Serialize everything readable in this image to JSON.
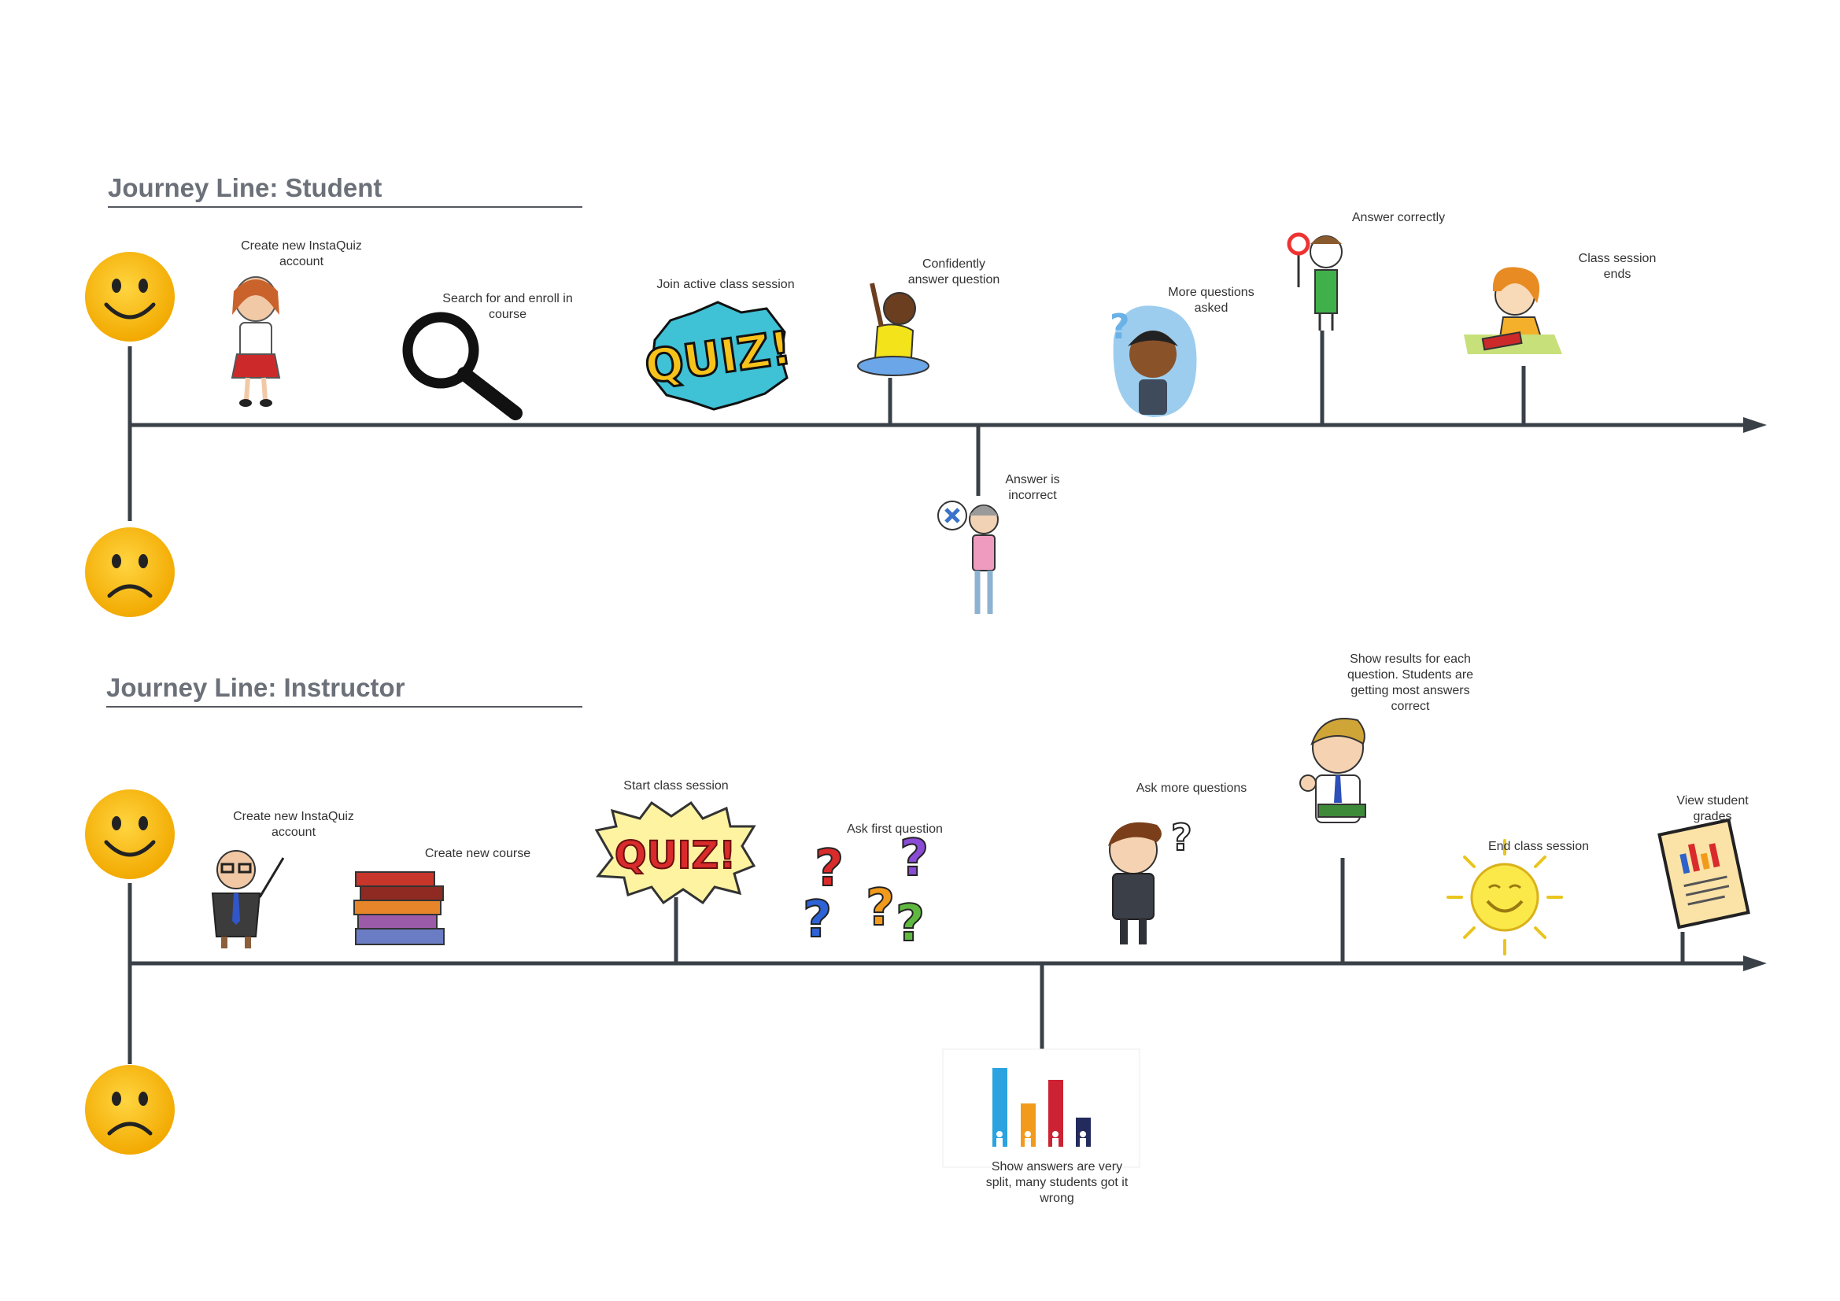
{
  "journeys": [
    {
      "title": "Journey Line: Student",
      "events": [
        {
          "name": "create-account",
          "lines": [
            "Create new InstaQuiz",
            "account"
          ],
          "icon": "student-girl-icon",
          "sentiment": "positive"
        },
        {
          "name": "search-enroll",
          "lines": [
            "Search for and enroll in",
            "course"
          ],
          "icon": "magnifying-glass-icon",
          "sentiment": "positive"
        },
        {
          "name": "join-session",
          "lines": [
            "Join active class session"
          ],
          "icon": "quiz-badge-icon",
          "sentiment": "positive"
        },
        {
          "name": "confident-answer",
          "lines": [
            "Confidently",
            "answer question"
          ],
          "icon": "raising-hand-student-icon",
          "sentiment": "positive"
        },
        {
          "name": "answer-incorrect",
          "lines": [
            "Answer is",
            "incorrect"
          ],
          "icon": "wrong-answer-person-icon",
          "sentiment": "negative"
        },
        {
          "name": "more-questions",
          "lines": [
            "More questions",
            "asked"
          ],
          "icon": "thinking-boy-icon",
          "sentiment": "positive"
        },
        {
          "name": "answer-correct",
          "lines": [
            "Answer correctly"
          ],
          "icon": "correct-answer-person-icon",
          "sentiment": "positive"
        },
        {
          "name": "session-ends",
          "lines": [
            "Class session",
            "ends"
          ],
          "icon": "girl-with-books-icon",
          "sentiment": "positive"
        }
      ]
    },
    {
      "title": "Journey Line: Instructor",
      "events": [
        {
          "name": "create-account",
          "lines": [
            "Create new InstaQuiz",
            "account"
          ],
          "icon": "professor-icon",
          "sentiment": "positive"
        },
        {
          "name": "create-course",
          "lines": [
            "Create new course"
          ],
          "icon": "book-stack-icon",
          "sentiment": "positive"
        },
        {
          "name": "start-session",
          "lines": [
            "Start class session"
          ],
          "icon": "quiz-burst-icon",
          "sentiment": "positive"
        },
        {
          "name": "first-question",
          "lines": [
            "Ask first question"
          ],
          "icon": "question-marks-icon",
          "sentiment": "positive"
        },
        {
          "name": "split-answers",
          "lines": [
            "Show answers are very",
            "split, many students got it",
            "wrong"
          ],
          "icon": "bar-chart-icon",
          "sentiment": "negative"
        },
        {
          "name": "more-questions",
          "lines": [
            "Ask more questions"
          ],
          "icon": "thinking-man-icon",
          "sentiment": "positive"
        },
        {
          "name": "show-results",
          "lines": [
            "Show results for each",
            "question. Students are",
            "getting most answers",
            "correct"
          ],
          "icon": "thumbs-up-teacher-icon",
          "sentiment": "positive"
        },
        {
          "name": "end-session",
          "lines": [
            "End class session"
          ],
          "icon": "sun-icon",
          "sentiment": "positive"
        },
        {
          "name": "view-grades",
          "lines": [
            "View student",
            "grades"
          ],
          "icon": "report-document-icon",
          "sentiment": "positive"
        }
      ]
    }
  ],
  "sentiment_icons": {
    "positive": "happy-face-icon",
    "negative": "sad-face-icon"
  },
  "colors": {
    "axis": "#3a4047",
    "emoji_yellow": "#f5b800",
    "title": "#6b7079"
  }
}
